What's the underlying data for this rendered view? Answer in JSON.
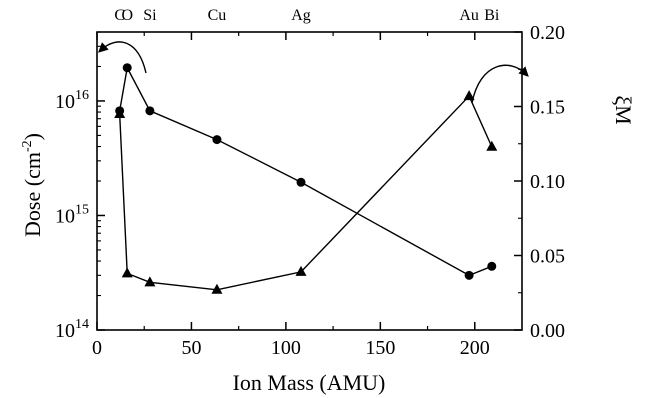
{
  "chart_data": {
    "type": "line",
    "xlabel": "Ion Mass (AMU)",
    "xlim": [
      0,
      225
    ],
    "x_ticks": [
      "0",
      "50",
      "100",
      "150",
      "200"
    ],
    "top_ion_labels": [
      {
        "text": "C",
        "x": 12
      },
      {
        "text": "O",
        "x": 16
      },
      {
        "text": "Si",
        "x": 28
      },
      {
        "text": "Cu",
        "x": 63.5
      },
      {
        "text": "Ag",
        "x": 108
      },
      {
        "text": "Au",
        "x": 197
      },
      {
        "text": "Bi",
        "x": 209
      }
    ],
    "left_axis": {
      "label_main": "Dose (cm",
      "label_sup": "-2",
      "label_close": ")",
      "scale": "log",
      "ylim": [
        100000000000000.0,
        4e+16
      ],
      "ticks": [
        {
          "base": "10",
          "exp": "14",
          "value": 100000000000000.0
        },
        {
          "base": "10",
          "exp": "15",
          "value": 1000000000000000.0
        },
        {
          "base": "10",
          "exp": "16",
          "value": 1e+16
        }
      ]
    },
    "right_axis": {
      "label": "ξM",
      "ylim": [
        0,
        0.2
      ],
      "ticks": [
        "0.00",
        "0.05",
        "0.10",
        "0.15",
        "0.20"
      ]
    },
    "series": [
      {
        "axis": "left",
        "marker": "circle",
        "x": [
          12,
          16,
          28,
          63.5,
          108,
          197,
          209
        ],
        "y": [
          8200000000000000.0,
          1.95e+16,
          8200000000000000.0,
          4600000000000000.0,
          1950000000000000.0,
          300000000000000.0,
          360000000000000.0
        ]
      },
      {
        "axis": "right",
        "marker": "triangle",
        "x": [
          12,
          16,
          28,
          63.5,
          108,
          197,
          209
        ],
        "y": [
          0.145,
          0.038,
          0.032,
          0.027,
          0.039,
          0.157,
          0.123
        ]
      }
    ],
    "colors": {
      "line": "#000000",
      "marker": "#000000"
    }
  }
}
